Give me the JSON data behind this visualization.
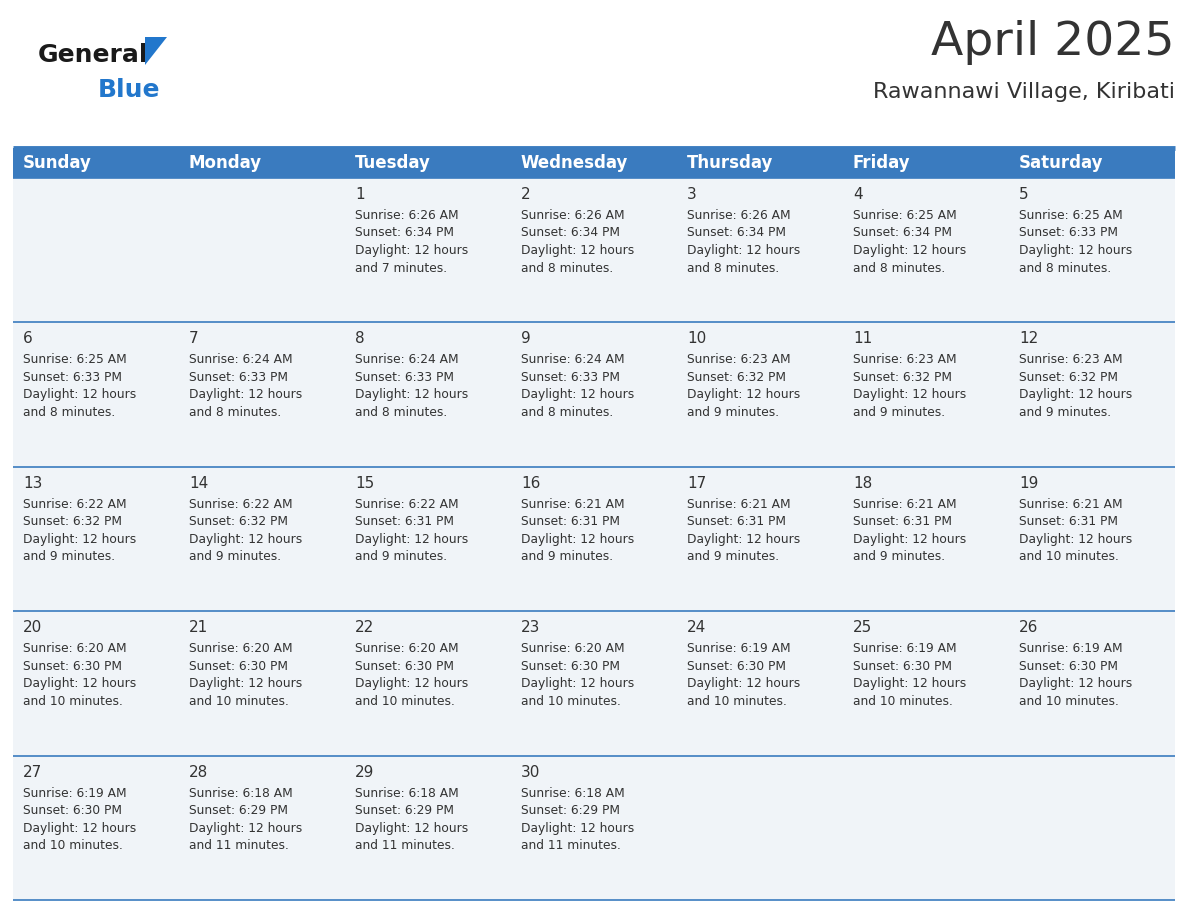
{
  "title": "April 2025",
  "subtitle": "Rawannawi Village, Kiribati",
  "days_of_week": [
    "Sunday",
    "Monday",
    "Tuesday",
    "Wednesday",
    "Thursday",
    "Friday",
    "Saturday"
  ],
  "header_bg": "#3a7bbf",
  "header_text": "#ffffff",
  "row_bg": "#f0f4f8",
  "divider_color": "#3a7bbf",
  "text_color": "#333333",
  "logo_general_color": "#1a1a1a",
  "logo_blue_color": "#2277cc",
  "weeks": [
    {
      "days": [
        {
          "date": null,
          "sunrise": null,
          "sunset": null,
          "daylight": null
        },
        {
          "date": null,
          "sunrise": null,
          "sunset": null,
          "daylight": null
        },
        {
          "date": 1,
          "sunrise": "6:26 AM",
          "sunset": "6:34 PM",
          "daylight": "12 hours and 7 minutes."
        },
        {
          "date": 2,
          "sunrise": "6:26 AM",
          "sunset": "6:34 PM",
          "daylight": "12 hours and 8 minutes."
        },
        {
          "date": 3,
          "sunrise": "6:26 AM",
          "sunset": "6:34 PM",
          "daylight": "12 hours and 8 minutes."
        },
        {
          "date": 4,
          "sunrise": "6:25 AM",
          "sunset": "6:34 PM",
          "daylight": "12 hours and 8 minutes."
        },
        {
          "date": 5,
          "sunrise": "6:25 AM",
          "sunset": "6:33 PM",
          "daylight": "12 hours and 8 minutes."
        }
      ]
    },
    {
      "days": [
        {
          "date": 6,
          "sunrise": "6:25 AM",
          "sunset": "6:33 PM",
          "daylight": "12 hours and 8 minutes."
        },
        {
          "date": 7,
          "sunrise": "6:24 AM",
          "sunset": "6:33 PM",
          "daylight": "12 hours and 8 minutes."
        },
        {
          "date": 8,
          "sunrise": "6:24 AM",
          "sunset": "6:33 PM",
          "daylight": "12 hours and 8 minutes."
        },
        {
          "date": 9,
          "sunrise": "6:24 AM",
          "sunset": "6:33 PM",
          "daylight": "12 hours and 8 minutes."
        },
        {
          "date": 10,
          "sunrise": "6:23 AM",
          "sunset": "6:32 PM",
          "daylight": "12 hours and 9 minutes."
        },
        {
          "date": 11,
          "sunrise": "6:23 AM",
          "sunset": "6:32 PM",
          "daylight": "12 hours and 9 minutes."
        },
        {
          "date": 12,
          "sunrise": "6:23 AM",
          "sunset": "6:32 PM",
          "daylight": "12 hours and 9 minutes."
        }
      ]
    },
    {
      "days": [
        {
          "date": 13,
          "sunrise": "6:22 AM",
          "sunset": "6:32 PM",
          "daylight": "12 hours and 9 minutes."
        },
        {
          "date": 14,
          "sunrise": "6:22 AM",
          "sunset": "6:32 PM",
          "daylight": "12 hours and 9 minutes."
        },
        {
          "date": 15,
          "sunrise": "6:22 AM",
          "sunset": "6:31 PM",
          "daylight": "12 hours and 9 minutes."
        },
        {
          "date": 16,
          "sunrise": "6:21 AM",
          "sunset": "6:31 PM",
          "daylight": "12 hours and 9 minutes."
        },
        {
          "date": 17,
          "sunrise": "6:21 AM",
          "sunset": "6:31 PM",
          "daylight": "12 hours and 9 minutes."
        },
        {
          "date": 18,
          "sunrise": "6:21 AM",
          "sunset": "6:31 PM",
          "daylight": "12 hours and 9 minutes."
        },
        {
          "date": 19,
          "sunrise": "6:21 AM",
          "sunset": "6:31 PM",
          "daylight": "12 hours and 10 minutes."
        }
      ]
    },
    {
      "days": [
        {
          "date": 20,
          "sunrise": "6:20 AM",
          "sunset": "6:30 PM",
          "daylight": "12 hours and 10 minutes."
        },
        {
          "date": 21,
          "sunrise": "6:20 AM",
          "sunset": "6:30 PM",
          "daylight": "12 hours and 10 minutes."
        },
        {
          "date": 22,
          "sunrise": "6:20 AM",
          "sunset": "6:30 PM",
          "daylight": "12 hours and 10 minutes."
        },
        {
          "date": 23,
          "sunrise": "6:20 AM",
          "sunset": "6:30 PM",
          "daylight": "12 hours and 10 minutes."
        },
        {
          "date": 24,
          "sunrise": "6:19 AM",
          "sunset": "6:30 PM",
          "daylight": "12 hours and 10 minutes."
        },
        {
          "date": 25,
          "sunrise": "6:19 AM",
          "sunset": "6:30 PM",
          "daylight": "12 hours and 10 minutes."
        },
        {
          "date": 26,
          "sunrise": "6:19 AM",
          "sunset": "6:30 PM",
          "daylight": "12 hours and 10 minutes."
        }
      ]
    },
    {
      "days": [
        {
          "date": 27,
          "sunrise": "6:19 AM",
          "sunset": "6:30 PM",
          "daylight": "12 hours and 10 minutes."
        },
        {
          "date": 28,
          "sunrise": "6:18 AM",
          "sunset": "6:29 PM",
          "daylight": "12 hours and 11 minutes."
        },
        {
          "date": 29,
          "sunrise": "6:18 AM",
          "sunset": "6:29 PM",
          "daylight": "12 hours and 11 minutes."
        },
        {
          "date": 30,
          "sunrise": "6:18 AM",
          "sunset": "6:29 PM",
          "daylight": "12 hours and 11 minutes."
        },
        {
          "date": null,
          "sunrise": null,
          "sunset": null,
          "daylight": null
        },
        {
          "date": null,
          "sunrise": null,
          "sunset": null,
          "daylight": null
        },
        {
          "date": null,
          "sunrise": null,
          "sunset": null,
          "daylight": null
        }
      ]
    }
  ],
  "fig_width": 11.88,
  "fig_height": 9.18
}
